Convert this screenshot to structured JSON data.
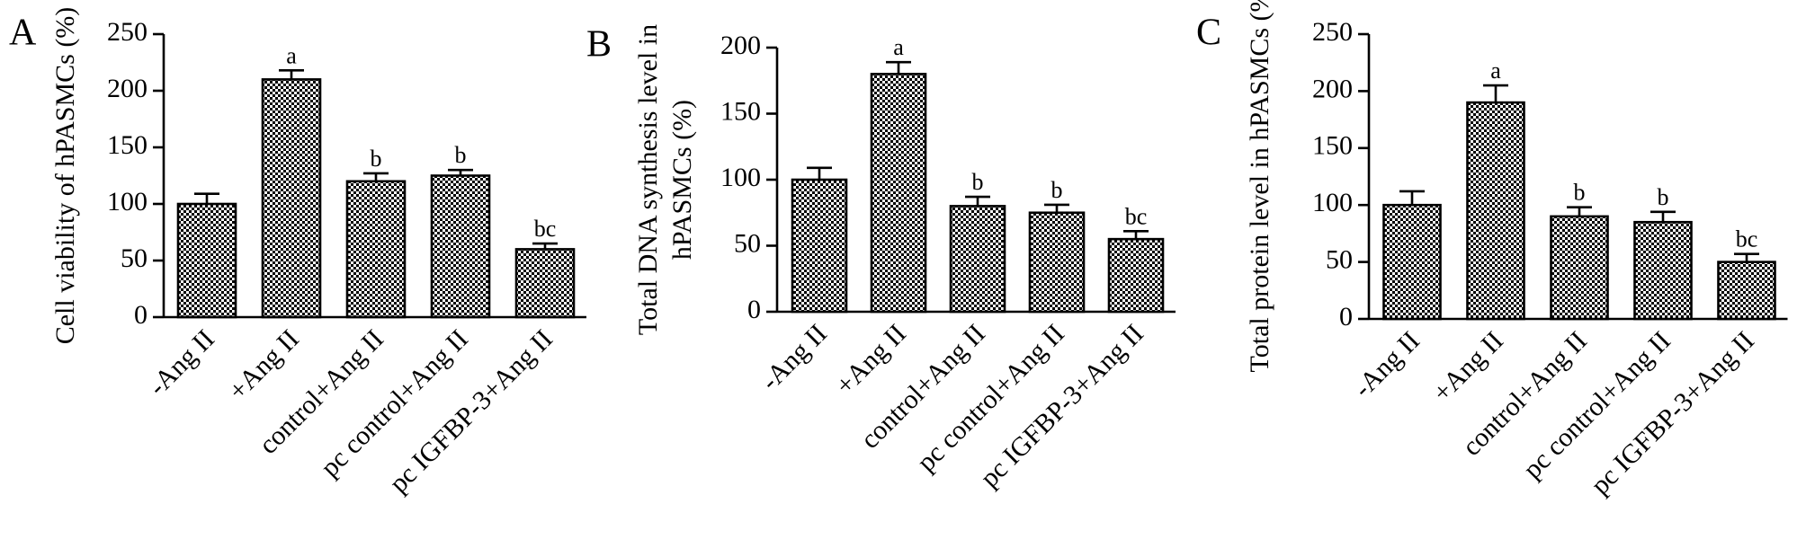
{
  "chart_data": [
    {
      "type": "bar",
      "panel_label": "A",
      "ylabel": "Cell viability of hPASMCs (%)",
      "ylim": [
        0,
        250
      ],
      "yticks": [
        0,
        50,
        100,
        150,
        200,
        250
      ],
      "categories": [
        "-Ang II",
        "+Ang II",
        "control+Ang II",
        "pc control+Ang II",
        "pc IGFBP-3+Ang II"
      ],
      "values": [
        100,
        210,
        120,
        125,
        60
      ],
      "errors": [
        9,
        8,
        7,
        5,
        5
      ],
      "annotations": [
        "",
        "a",
        "b",
        "b",
        "bc"
      ]
    },
    {
      "type": "bar",
      "panel_label": "B",
      "ylabel": [
        "Total DNA synthesis level in",
        "hPASMCs (%)"
      ],
      "ylim": [
        0,
        200
      ],
      "yticks": [
        0,
        50,
        100,
        150,
        200
      ],
      "categories": [
        "-Ang II",
        "+Ang II",
        "control+Ang II",
        "pc control+Ang II",
        "pc IGFBP-3+Ang II"
      ],
      "values": [
        100,
        180,
        80,
        75,
        55
      ],
      "errors": [
        9,
        9,
        7,
        6,
        6
      ],
      "annotations": [
        "",
        "a",
        "b",
        "b",
        "bc"
      ]
    },
    {
      "type": "bar",
      "panel_label": "C",
      "ylabel": "Total protein level in hPASMCs (%)",
      "ylim": [
        0,
        250
      ],
      "yticks": [
        0,
        50,
        100,
        150,
        200,
        250
      ],
      "categories": [
        "-Ang II",
        "+Ang II",
        "control+Ang II",
        "pc control+Ang II",
        "pc IGFBP-3+Ang II"
      ],
      "values": [
        100,
        190,
        90,
        85,
        50
      ],
      "errors": [
        12,
        15,
        8,
        9,
        7
      ],
      "annotations": [
        "",
        "a",
        "b",
        "b",
        "bc"
      ]
    }
  ]
}
